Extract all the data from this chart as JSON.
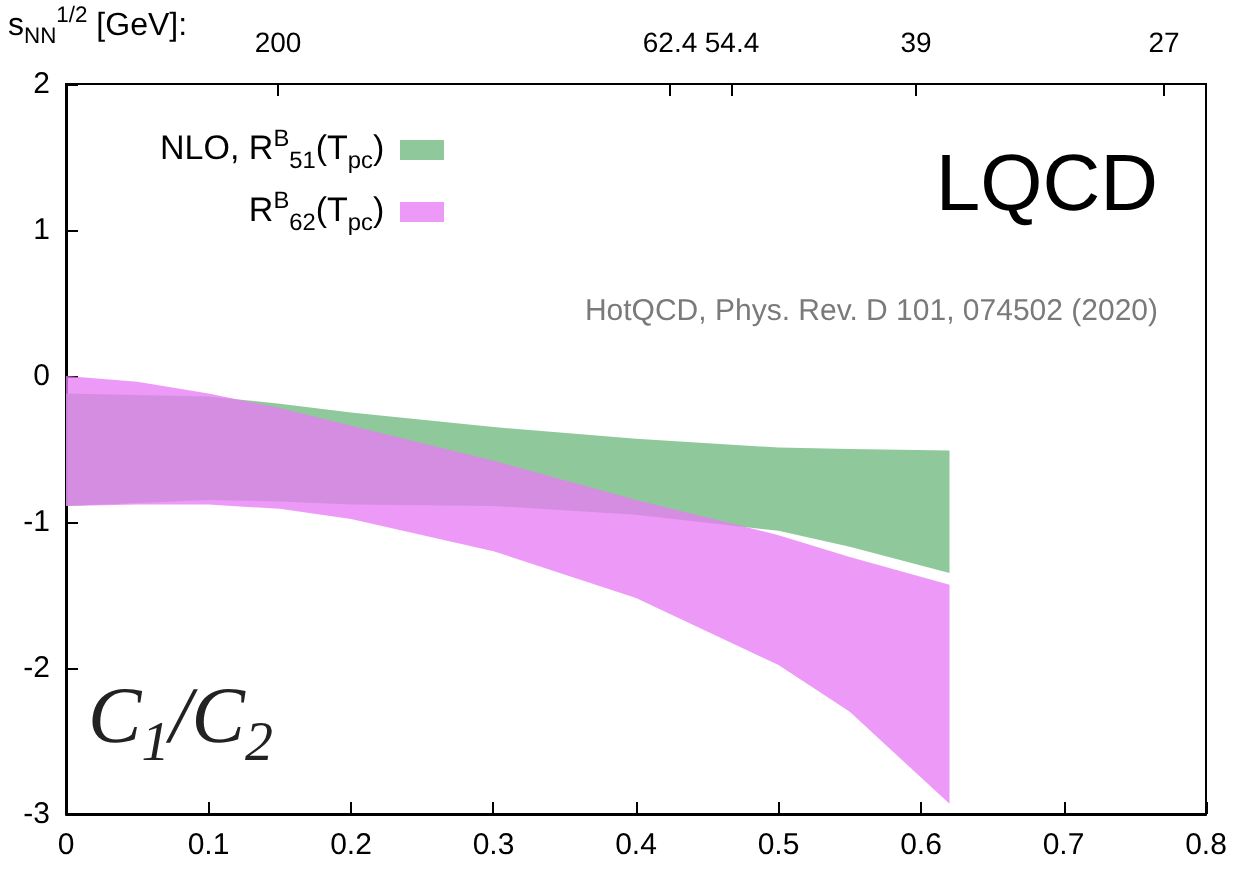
{
  "chart_data": {
    "type": "area",
    "xlim": [
      0,
      0.8
    ],
    "xticks": [
      0,
      0.1,
      0.2,
      0.3,
      0.4,
      0.5,
      0.6,
      0.7,
      0.8
    ],
    "ylim": [
      -3,
      2
    ],
    "yticks": [
      -3,
      -2,
      -1,
      0,
      1,
      2
    ],
    "series": [
      {
        "name": "NLO, R$^{B}$$_{51}$(T$_{pc}$)",
        "color": "#6fb97e",
        "x": [
          0,
          0.1,
          0.15,
          0.2,
          0.3,
          0.4,
          0.5,
          0.55,
          0.62
        ],
        "values": [
          null,
          null,
          null,
          null,
          null,
          null,
          null,
          null,
          null
        ],
        "upper": [
          -0.12,
          -0.14,
          -0.19,
          -0.25,
          -0.35,
          -0.43,
          -0.49,
          -0.5,
          -0.51
        ],
        "lower": [
          -0.89,
          -0.85,
          -0.86,
          -0.88,
          -0.89,
          -0.95,
          -1.06,
          -1.17,
          -1.35
        ]
      },
      {
        "name": "R$^{B}$$_{62}$(T$_{pc}$)",
        "color": "#e87cf5",
        "x": [
          0,
          0.05,
          0.1,
          0.15,
          0.2,
          0.3,
          0.4,
          0.5,
          0.55,
          0.62
        ],
        "values": [
          null,
          null,
          null,
          null,
          null,
          null,
          null,
          null,
          null,
          null
        ],
        "upper": [
          0,
          -0.04,
          -0.12,
          -0.22,
          -0.34,
          -0.58,
          -0.85,
          -1.09,
          -1.24,
          -1.43
        ],
        "lower": [
          -0.89,
          -0.88,
          -0.88,
          -0.91,
          -0.98,
          -1.2,
          -1.52,
          -1.98,
          -2.3,
          -2.93
        ]
      }
    ],
    "legend": "top left",
    "grid": false,
    "annotations": [
      "LQCD",
      "HotQCD, Phys. Rev. D 101, 074502 (2020)",
      "C$_{1}$/C$_{2}$",
      "s$_{NN}$$^{1/2}$ [GeV]:",
      "200",
      "62.4",
      "54.4",
      "39",
      "27"
    ]
  }
}
